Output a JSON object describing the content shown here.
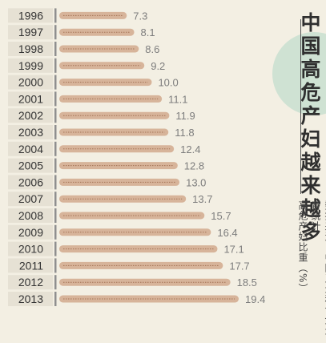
{
  "chart_data": {
    "type": "bar",
    "orientation": "horizontal",
    "title": "中国高危产妇越来越多",
    "source": "数据来源：中国卫生和计划生育统计",
    "ylabel": "高危产妇比重（%）",
    "categories": [
      "1996",
      "1997",
      "1998",
      "1999",
      "2000",
      "2001",
      "2002",
      "2003",
      "2004",
      "2005",
      "2006",
      "2007",
      "2008",
      "2009",
      "2010",
      "2011",
      "2012",
      "2013"
    ],
    "values": [
      7.3,
      8.1,
      8.6,
      9.2,
      10.0,
      11.1,
      11.9,
      11.8,
      12.4,
      12.8,
      13.0,
      13.7,
      15.7,
      16.4,
      17.1,
      17.7,
      18.5,
      19.4
    ],
    "value_labels": [
      "7.3",
      "8.1",
      "8.6",
      "9.2",
      "10.0",
      "11.1",
      "11.9",
      "11.8",
      "12.4",
      "12.8",
      "13.0",
      "13.7",
      "15.7",
      "16.4",
      "17.1",
      "17.7",
      "18.5",
      "19.4"
    ],
    "colors": {
      "bar": "#d7b49a",
      "bar_dots": "#a57457",
      "year_band": "#e6e1d4",
      "background": "#f3efe3",
      "text": "#333333",
      "accent_circle": "#cfe2d3"
    }
  }
}
